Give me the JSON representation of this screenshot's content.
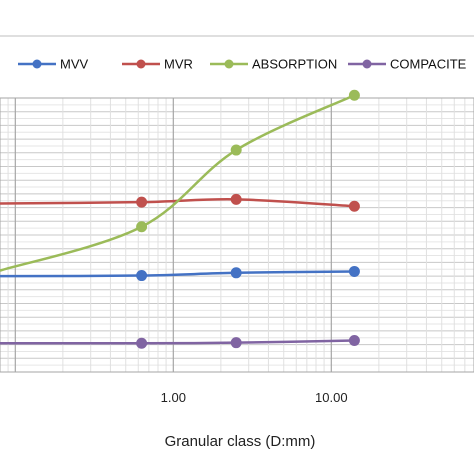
{
  "chart_data": {
    "type": "line",
    "title": "",
    "xlabel": "Granular class (D:mm)",
    "ylabel": "",
    "x_scale": "log",
    "xlim": [
      0.08,
      80
    ],
    "ylim": [
      0,
      100
    ],
    "x_ticks": [
      {
        "value": 1,
        "label": "1.00"
      },
      {
        "value": 10,
        "label": "10.00"
      }
    ],
    "grid": true,
    "legend_position": "top",
    "series": [
      {
        "name": "MVV",
        "color": "#4472C4",
        "x": [
          0.08,
          0.63,
          2.5,
          14
        ],
        "y": [
          35,
          35.2,
          36.2,
          36.7
        ]
      },
      {
        "name": "MVR",
        "color": "#C0504D",
        "x": [
          0.08,
          0.63,
          2.5,
          14
        ],
        "y": [
          61.5,
          62,
          63,
          60.5
        ]
      },
      {
        "name": "ABSORPTION",
        "color": "#9BBB59",
        "x": [
          0.08,
          0.63,
          2.5,
          14
        ],
        "y": [
          37,
          53,
          81,
          101
        ]
      },
      {
        "name": "COMPACITE",
        "color": "#8064A2",
        "x": [
          0.08,
          0.63,
          2.5,
          14
        ],
        "y": [
          10.5,
          10.5,
          10.7,
          11.5
        ]
      }
    ]
  }
}
